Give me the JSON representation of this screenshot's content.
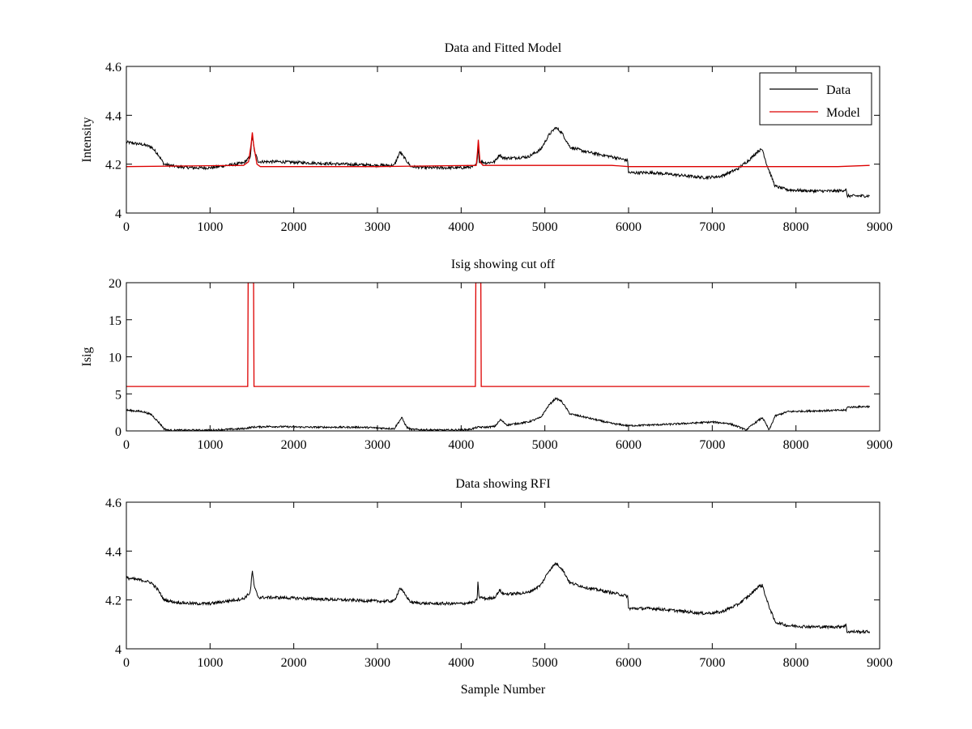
{
  "chart_data": [
    {
      "type": "line",
      "title": "Data and Fitted Model",
      "xlabel": "",
      "ylabel": "Intensity",
      "xlim": [
        0,
        9000
      ],
      "ylim": [
        4.0,
        4.6
      ],
      "xticks": [
        0,
        1000,
        2000,
        3000,
        4000,
        5000,
        6000,
        7000,
        8000,
        9000
      ],
      "yticks": [
        4.0,
        4.2,
        4.4,
        4.6
      ],
      "ytick_labels": [
        "4",
        "4.2",
        "4.4",
        "4.6"
      ],
      "grid": false,
      "legend": "top-right",
      "series": [
        {
          "name": "Data",
          "color": "#000000",
          "noise": 0.006,
          "x": [
            0,
            200,
            300,
            380,
            450,
            600,
            800,
            1000,
            1200,
            1400,
            1480,
            1505,
            1530,
            1580,
            1800,
            2200,
            2600,
            3000,
            3200,
            3270,
            3290,
            3400,
            3600,
            3800,
            4000,
            4150,
            4190,
            4200,
            4215,
            4240,
            4300,
            4400,
            4460,
            4500,
            4600,
            4800,
            4950,
            5050,
            5130,
            5200,
            5300,
            5500,
            5800,
            5990,
            6000,
            6300,
            6600,
            6900,
            7100,
            7300,
            7450,
            7550,
            7600,
            7650,
            7750,
            7900,
            8200,
            8500,
            8600,
            8610,
            8880
          ],
          "y": [
            4.29,
            4.28,
            4.27,
            4.24,
            4.2,
            4.19,
            4.185,
            4.185,
            4.195,
            4.205,
            4.23,
            4.32,
            4.25,
            4.21,
            4.21,
            4.205,
            4.2,
            4.195,
            4.195,
            4.25,
            4.24,
            4.19,
            4.185,
            4.185,
            4.185,
            4.19,
            4.2,
            4.28,
            4.21,
            4.21,
            4.205,
            4.21,
            4.24,
            4.225,
            4.225,
            4.23,
            4.26,
            4.32,
            4.35,
            4.33,
            4.27,
            4.25,
            4.23,
            4.215,
            4.165,
            4.165,
            4.155,
            4.145,
            4.15,
            4.18,
            4.22,
            4.255,
            4.26,
            4.2,
            4.11,
            4.095,
            4.09,
            4.09,
            4.095,
            4.07,
            4.07
          ]
        },
        {
          "name": "Model",
          "color": "#dd0000",
          "noise": 0.0,
          "x": [
            0,
            1400,
            1460,
            1490,
            1505,
            1520,
            1560,
            1600,
            3000,
            4180,
            4195,
            4205,
            4225,
            4260,
            5000,
            5800,
            6000,
            6800,
            7100,
            8500,
            8880
          ],
          "y": [
            4.19,
            4.195,
            4.21,
            4.28,
            4.33,
            4.28,
            4.2,
            4.19,
            4.19,
            4.195,
            4.25,
            4.3,
            4.21,
            4.195,
            4.195,
            4.195,
            4.19,
            4.19,
            4.19,
            4.19,
            4.195
          ]
        }
      ]
    },
    {
      "type": "line",
      "title": "Isig showing cut off",
      "xlabel": "",
      "ylabel": "Isig",
      "xlim": [
        0,
        9000
      ],
      "ylim": [
        0,
        20
      ],
      "xticks": [
        0,
        1000,
        2000,
        3000,
        4000,
        5000,
        6000,
        7000,
        8000,
        9000
      ],
      "yticks": [
        0,
        5,
        10,
        15,
        20
      ],
      "ytick_labels": [
        "0",
        "5",
        "10",
        "15",
        "20"
      ],
      "grid": false,
      "series": [
        {
          "color": "#000000",
          "noise": 0.12,
          "x": [
            0,
            200,
            300,
            400,
            450,
            500,
            1000,
            1400,
            1500,
            1700,
            2200,
            2800,
            3200,
            3290,
            3350,
            3400,
            3800,
            4100,
            4200,
            4300,
            4400,
            4470,
            4550,
            4800,
            4950,
            5050,
            5130,
            5200,
            5300,
            5500,
            5800,
            6000,
            6500,
            7000,
            7200,
            7350,
            7400,
            7500,
            7600,
            7680,
            7750,
            7900,
            8200,
            8600,
            8610,
            8880
          ],
          "y": [
            2.8,
            2.6,
            2.2,
            1.0,
            0.3,
            0.1,
            0.1,
            0.3,
            0.5,
            0.6,
            0.5,
            0.5,
            0.3,
            1.8,
            0.5,
            0.2,
            0.1,
            0.2,
            0.5,
            0.5,
            0.6,
            1.5,
            0.8,
            1.2,
            1.8,
            3.5,
            4.4,
            4.0,
            2.3,
            1.8,
            1.0,
            0.7,
            0.9,
            1.2,
            1.0,
            0.4,
            0.1,
            1.0,
            1.8,
            0.1,
            2.0,
            2.6,
            2.7,
            2.8,
            3.2,
            3.3
          ]
        },
        {
          "color": "#dd0000",
          "noise": 0.0,
          "x": [
            0,
            1450,
            1455,
            1520,
            1525,
            4170,
            4175,
            4235,
            4240,
            8880
          ],
          "y": [
            6,
            6,
            20,
            20,
            6,
            6,
            20,
            20,
            6,
            6
          ]
        }
      ]
    },
    {
      "type": "line",
      "title": "Data showing RFI",
      "xlabel": "Sample Number",
      "ylabel": "",
      "xlim": [
        0,
        9000
      ],
      "ylim": [
        4.0,
        4.6
      ],
      "xticks": [
        0,
        1000,
        2000,
        3000,
        4000,
        5000,
        6000,
        7000,
        8000,
        9000
      ],
      "yticks": [
        4.0,
        4.2,
        4.4,
        4.6
      ],
      "ytick_labels": [
        "4",
        "4.2",
        "4.4",
        "4.6"
      ],
      "grid": false,
      "series": [
        {
          "color": "#000000",
          "noise": 0.006,
          "x": [
            0,
            200,
            300,
            380,
            450,
            600,
            800,
            1000,
            1200,
            1400,
            1480,
            1505,
            1530,
            1580,
            1800,
            2200,
            2600,
            3000,
            3200,
            3270,
            3290,
            3400,
            3600,
            3800,
            4000,
            4150,
            4190,
            4200,
            4215,
            4240,
            4300,
            4400,
            4460,
            4500,
            4600,
            4800,
            4950,
            5050,
            5130,
            5200,
            5300,
            5500,
            5800,
            5990,
            6000,
            6300,
            6600,
            6900,
            7100,
            7300,
            7450,
            7550,
            7600,
            7650,
            7750,
            7900,
            8200,
            8500,
            8600,
            8610,
            8880
          ],
          "y": [
            4.29,
            4.28,
            4.27,
            4.24,
            4.2,
            4.19,
            4.185,
            4.185,
            4.195,
            4.205,
            4.23,
            4.32,
            4.25,
            4.21,
            4.21,
            4.205,
            4.2,
            4.195,
            4.195,
            4.25,
            4.24,
            4.19,
            4.185,
            4.185,
            4.185,
            4.19,
            4.2,
            4.27,
            4.21,
            4.21,
            4.205,
            4.21,
            4.24,
            4.225,
            4.225,
            4.23,
            4.26,
            4.32,
            4.35,
            4.33,
            4.27,
            4.25,
            4.23,
            4.215,
            4.165,
            4.165,
            4.155,
            4.145,
            4.15,
            4.18,
            4.22,
            4.255,
            4.26,
            4.2,
            4.11,
            4.095,
            4.09,
            4.09,
            4.095,
            4.07,
            4.07
          ]
        }
      ]
    }
  ]
}
